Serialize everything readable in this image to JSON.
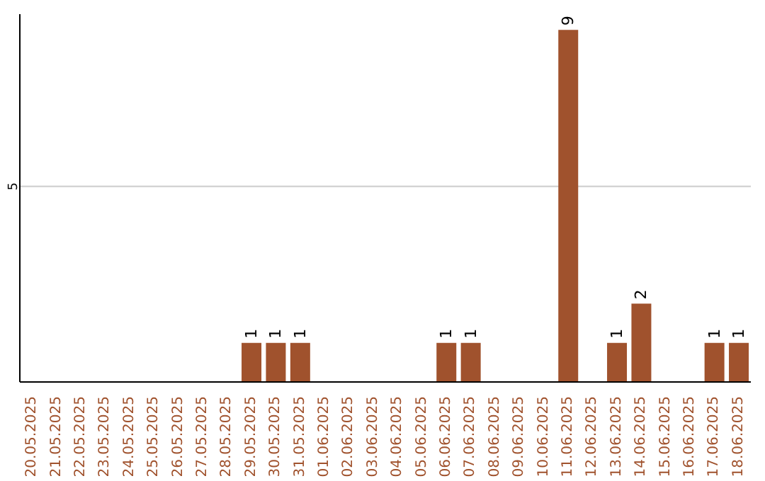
{
  "chart_data": {
    "type": "bar",
    "categories": [
      "20.05.2025",
      "21.05.2025",
      "22.05.2025",
      "23.05.2025",
      "24.05.2025",
      "25.05.2025",
      "26.05.2025",
      "27.05.2025",
      "28.05.2025",
      "29.05.2025",
      "30.05.2025",
      "31.05.2025",
      "01.06.2025",
      "02.06.2025",
      "03.06.2025",
      "04.06.2025",
      "05.06.2025",
      "06.06.2025",
      "07.06.2025",
      "08.06.2025",
      "09.06.2025",
      "10.06.2025",
      "11.06.2025",
      "12.06.2025",
      "13.06.2025",
      "14.06.2025",
      "15.06.2025",
      "16.06.2025",
      "17.06.2025",
      "18.06.2025"
    ],
    "values": [
      0,
      0,
      0,
      0,
      0,
      0,
      0,
      0,
      0,
      1,
      1,
      1,
      0,
      0,
      0,
      0,
      0,
      1,
      1,
      0,
      0,
      0,
      9,
      0,
      1,
      2,
      0,
      0,
      1,
      1
    ],
    "value_labels": [
      null,
      null,
      null,
      null,
      null,
      null,
      null,
      null,
      null,
      "1",
      "1",
      "1",
      null,
      null,
      null,
      null,
      null,
      "1",
      "1",
      null,
      null,
      null,
      "9",
      null,
      "1",
      "2",
      null,
      null,
      "1",
      "1"
    ],
    "color": "#a0522d",
    "ylim": [
      0,
      9.4
    ],
    "yticks": [
      5
    ],
    "grid": "y"
  }
}
